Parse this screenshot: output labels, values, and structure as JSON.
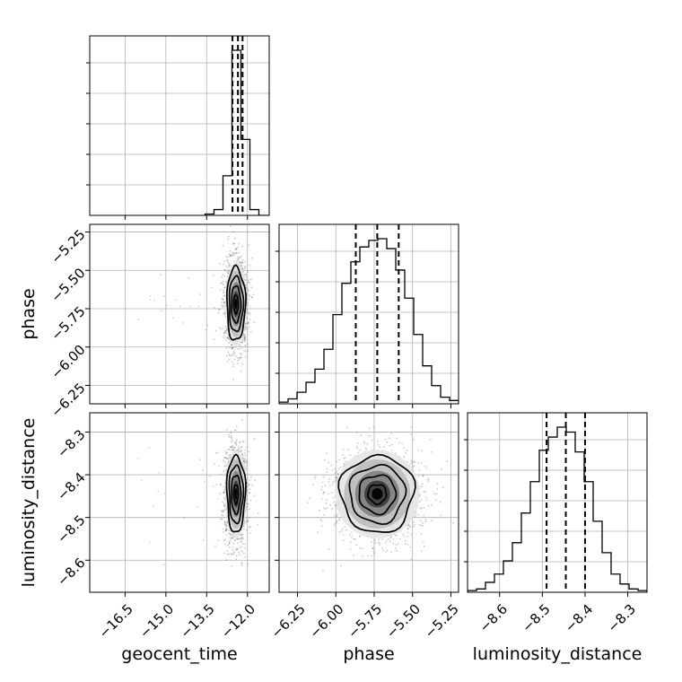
{
  "chart_data": {
    "type": "corner",
    "parameters": [
      "geocent_time",
      "phase",
      "luminosity_distance"
    ],
    "axis_labels": {
      "geocent_time": "geocent_time",
      "phase": "phase",
      "luminosity_distance": "luminosity_distance"
    },
    "ranges": {
      "geocent_time": [
        -17.8,
        -11.2
      ],
      "phase": [
        -6.37,
        -5.2
      ],
      "luminosity_distance": [
        -8.675,
        -8.255
      ]
    },
    "ticks": {
      "geocent_time": [
        -16.5,
        -15.0,
        -13.5,
        -12.0
      ],
      "phase": [
        -6.25,
        -6.0,
        -5.75,
        -5.5,
        -5.25
      ],
      "luminosity_distance": [
        -8.6,
        -8.5,
        -8.4,
        -8.3
      ]
    },
    "tick_labels": {
      "geocent_time": [
        "−16.5",
        "−15.0",
        "−13.5",
        "−12.0"
      ],
      "phase": [
        "−6.25",
        "−6.00",
        "−5.75",
        "−5.50",
        "−5.25"
      ],
      "luminosity_distance": [
        "−8.6",
        "−8.5",
        "−8.4",
        "−8.3"
      ]
    },
    "quantiles": {
      "geocent_time": [
        -12.55,
        -12.35,
        -12.18
      ],
      "phase": [
        -5.87,
        -5.73,
        -5.59
      ],
      "luminosity_distance": [
        -8.49,
        -8.445,
        -8.4
      ]
    },
    "histograms": {
      "geocent_time": {
        "bin_width": 0.33,
        "bins": [
          -13.56,
          -13.23,
          -12.9,
          -12.57,
          -12.24,
          -11.91,
          -11.58,
          -11.25
        ],
        "counts": [
          0.008,
          0.035,
          0.24,
          1.0,
          0.46,
          0.035,
          0.0,
          0.0
        ]
      },
      "phase": {
        "bin_width": 0.0585,
        "bins": [
          -6.37,
          -6.3115,
          -6.253,
          -6.1945,
          -6.136,
          -6.0775,
          -6.019,
          -5.9605,
          -5.902,
          -5.8435,
          -5.785,
          -5.7265,
          -5.668,
          -5.6095,
          -5.551,
          -5.4925,
          -5.434,
          -5.3755,
          -5.317,
          -5.2585
        ],
        "counts": [
          0.01,
          0.03,
          0.07,
          0.13,
          0.21,
          0.33,
          0.54,
          0.73,
          0.86,
          0.95,
          0.99,
          1.0,
          0.94,
          0.81,
          0.64,
          0.42,
          0.23,
          0.11,
          0.04,
          0.02
        ]
      },
      "luminosity_distance": {
        "bin_width": 0.021,
        "bins": [
          -8.675,
          -8.654,
          -8.633,
          -8.612,
          -8.591,
          -8.57,
          -8.549,
          -8.528,
          -8.507,
          -8.486,
          -8.465,
          -8.444,
          -8.423,
          -8.402,
          -8.381,
          -8.36,
          -8.339,
          -8.318,
          -8.297,
          -8.276
        ],
        "counts": [
          0.01,
          0.02,
          0.06,
          0.11,
          0.19,
          0.3,
          0.48,
          0.67,
          0.86,
          0.94,
          1.0,
          0.97,
          0.85,
          0.67,
          0.43,
          0.24,
          0.11,
          0.05,
          0.02,
          0.01
        ]
      }
    },
    "pairs": [
      {
        "x": "geocent_time",
        "y": "phase",
        "center": [
          -12.42,
          -5.72
        ],
        "spread": [
          0.17,
          0.12
        ]
      },
      {
        "x": "geocent_time",
        "y": "luminosity_distance",
        "center": [
          -12.42,
          -8.445
        ],
        "spread": [
          0.17,
          0.045
        ]
      },
      {
        "x": "phase",
        "y": "luminosity_distance",
        "center": [
          -5.73,
          -8.445
        ],
        "spread": [
          0.12,
          0.045
        ]
      }
    ],
    "contour_levels_sigma": [
      0.5,
      1.0,
      1.5,
      2.0
    ],
    "colors": {
      "line": "#000000",
      "scatter": "#555555",
      "grid": "#b0b0b0"
    },
    "grid": true
  }
}
